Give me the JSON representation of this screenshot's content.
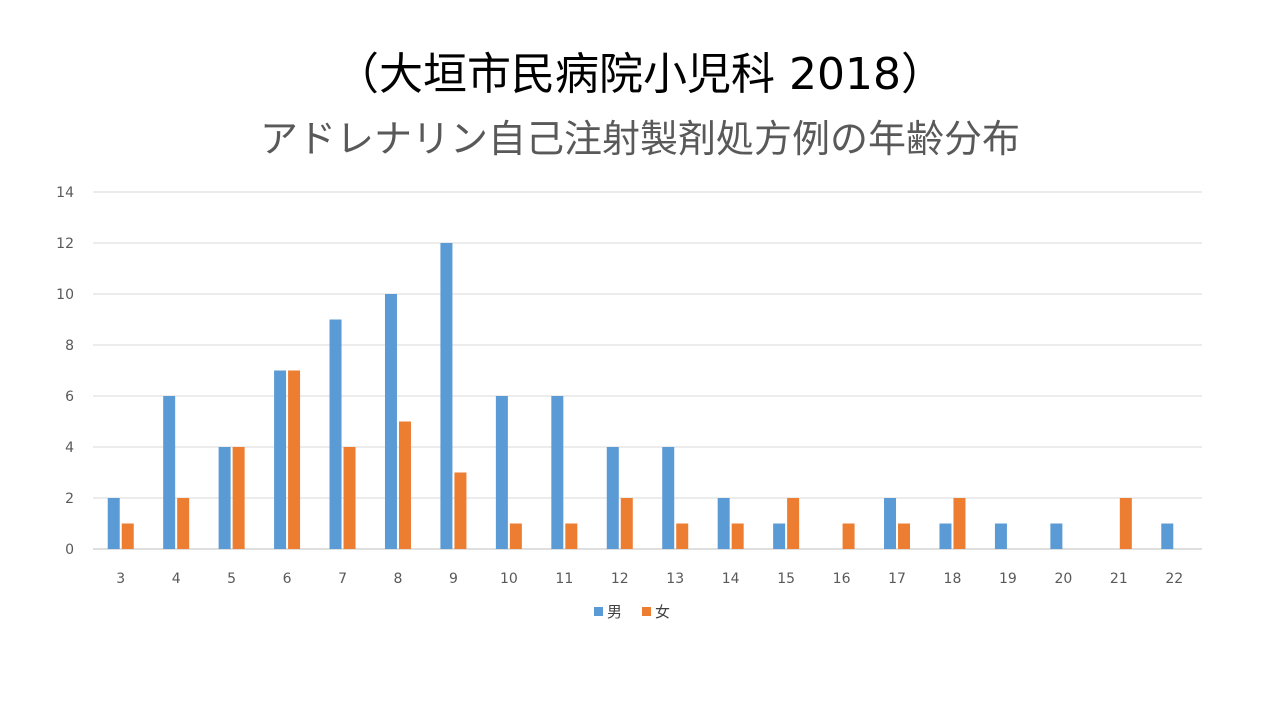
{
  "title_line1": "（大垣市民病院小児科 2018）",
  "title_line2": "アドレナリン自己注射製剤処方例の年齢分布",
  "colors": {
    "male": "#5b9bd5",
    "female": "#ed7d31",
    "grid": "#d9d9d9",
    "axis": "#bfbfbf"
  },
  "chart_data": {
    "type": "bar",
    "categories": [
      "3",
      "4",
      "5",
      "6",
      "7",
      "8",
      "9",
      "10",
      "11",
      "12",
      "13",
      "14",
      "15",
      "16",
      "17",
      "18",
      "19",
      "20",
      "21",
      "22"
    ],
    "series": [
      {
        "name": "男",
        "values": [
          2,
          6,
          4,
          7,
          9,
          10,
          12,
          6,
          6,
          4,
          4,
          2,
          1,
          0,
          2,
          1,
          1,
          1,
          0,
          1
        ]
      },
      {
        "name": "女",
        "values": [
          1,
          2,
          4,
          7,
          4,
          5,
          3,
          1,
          1,
          2,
          1,
          1,
          2,
          1,
          1,
          2,
          0,
          0,
          2,
          0
        ]
      }
    ],
    "ylim": [
      0,
      14
    ],
    "yticks": [
      "0",
      "2",
      "4",
      "6",
      "8",
      "10",
      "12",
      "14"
    ],
    "grid": true,
    "legend_position": "bottom"
  }
}
